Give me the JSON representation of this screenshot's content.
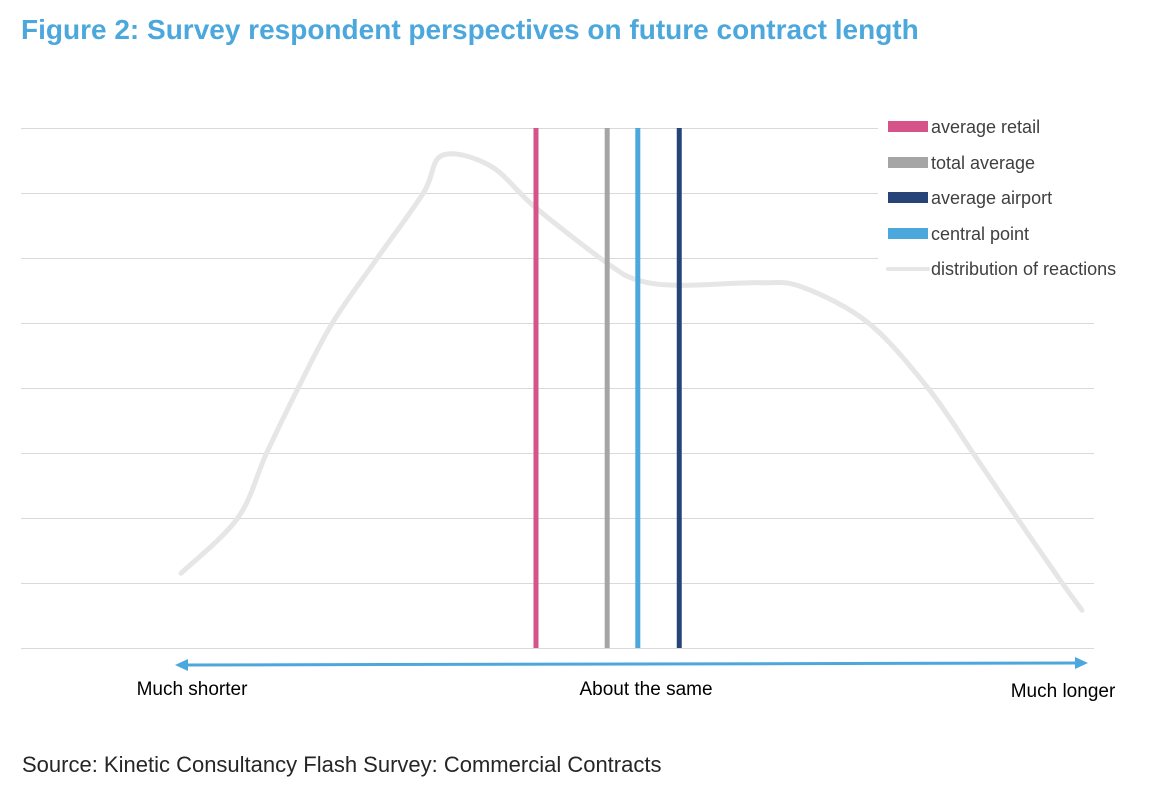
{
  "figure": {
    "title": "Figure 2: Survey respondent perspectives on future contract length",
    "source": "Source: Kinetic Consultancy Flash Survey: Commercial Contracts"
  },
  "colors": {
    "title": "#4ca8dc",
    "gridline": "#d9d9d9",
    "axis_arrow": "#4ca8dc",
    "average_retail": "#d6538a",
    "total_average": "#a5a5a5",
    "average_airport": "#264478",
    "central_point": "#4ca8dc",
    "distribution": "#e6e6e6"
  },
  "chart_data": {
    "type": "line",
    "title": "Figure 2: Survey respondent perspectives on future contract length",
    "xlabel": "",
    "ylabel": "",
    "x_axis_labels": [
      {
        "label": "Much shorter",
        "x": 1
      },
      {
        "label": "About the same",
        "x": 51.6
      },
      {
        "label": "Much longer",
        "x": 98
      }
    ],
    "xlim": [
      0,
      100
    ],
    "ylim": [
      0,
      8
    ],
    "y_gridlines": [
      0,
      1,
      2,
      3,
      4,
      5,
      6,
      7,
      8
    ],
    "grid": true,
    "y_tick_labels_shown": false,
    "axis_direction_arrow": "both-ends",
    "legend_position": "top-right",
    "vertical_markers": [
      {
        "name": "average retail",
        "x": 39.4,
        "color": "#d6538a"
      },
      {
        "name": "total average",
        "x": 47.3,
        "color": "#a5a5a5"
      },
      {
        "name": "central point",
        "x": 50.7,
        "color": "#4ca8dc"
      },
      {
        "name": "average airport",
        "x": 55.3,
        "color": "#264478"
      }
    ],
    "series": [
      {
        "name": "distribution of reactions",
        "color": "#e6e6e6",
        "x": [
          0,
          6.3,
          9.5,
          13.0,
          16.8,
          21.8,
          26.9,
          29.0,
          34.3,
          39.4,
          47.3,
          50.7,
          55.3,
          64.3,
          69.0,
          76.3,
          82.9,
          87.9,
          92.8,
          97.8,
          100
        ],
        "y": [
          1.15,
          2.0,
          3.0,
          4.0,
          5.0,
          6.0,
          7.0,
          7.58,
          7.42,
          6.77,
          5.92,
          5.66,
          5.58,
          5.62,
          5.55,
          5.0,
          4.0,
          3.0,
          2.0,
          1.0,
          0.58
        ]
      }
    ],
    "legend": [
      {
        "label": "average retail",
        "color": "#d6538a",
        "kind": "bar"
      },
      {
        "label": "total average",
        "color": "#a5a5a5",
        "kind": "bar"
      },
      {
        "label": "average airport",
        "color": "#264478",
        "kind": "bar"
      },
      {
        "label": "central point",
        "color": "#4ca8dc",
        "kind": "bar"
      },
      {
        "label": "distribution of reactions",
        "color": "#e6e6e6",
        "kind": "line"
      }
    ]
  }
}
